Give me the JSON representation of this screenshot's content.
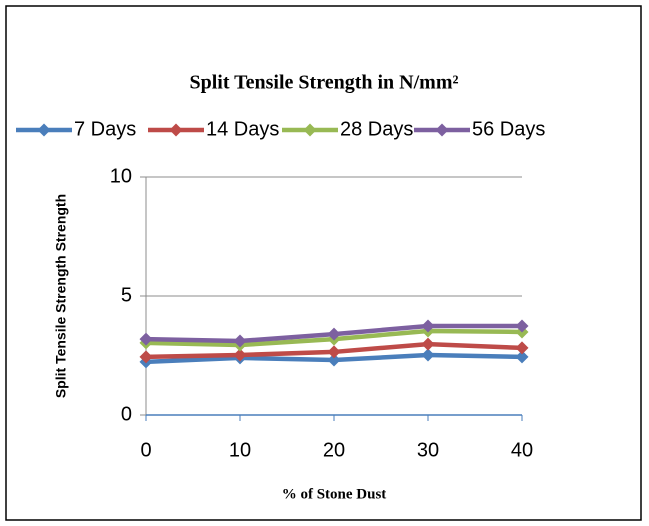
{
  "chart_data": {
    "type": "line",
    "title": "Split Tensile Strength in N/mm²",
    "x_label": "% of Stone Dust",
    "y_label": "Split Tensile Strength  Strength",
    "x": [
      0,
      10,
      20,
      30,
      40
    ],
    "series": [
      {
        "name": "7 Days",
        "color": "#4a7ebb",
        "values": [
          2.23,
          2.4,
          2.31,
          2.52,
          2.44
        ]
      },
      {
        "name": "14 Days",
        "color": "#be4b48",
        "values": [
          2.44,
          2.52,
          2.65,
          2.98,
          2.82
        ]
      },
      {
        "name": "28 Days",
        "color": "#98b954",
        "values": [
          3.03,
          2.94,
          3.19,
          3.53,
          3.49
        ]
      },
      {
        "name": "56 Days",
        "color": "#7d60a0",
        "values": [
          3.19,
          3.11,
          3.4,
          3.74,
          3.74
        ]
      }
    ],
    "xlim": [
      0,
      40
    ],
    "xticks": [
      0,
      10,
      20,
      30,
      40
    ],
    "ylim": [
      0,
      10
    ],
    "yticks": [
      0,
      5,
      10
    ],
    "grid": true,
    "legend": "top"
  }
}
